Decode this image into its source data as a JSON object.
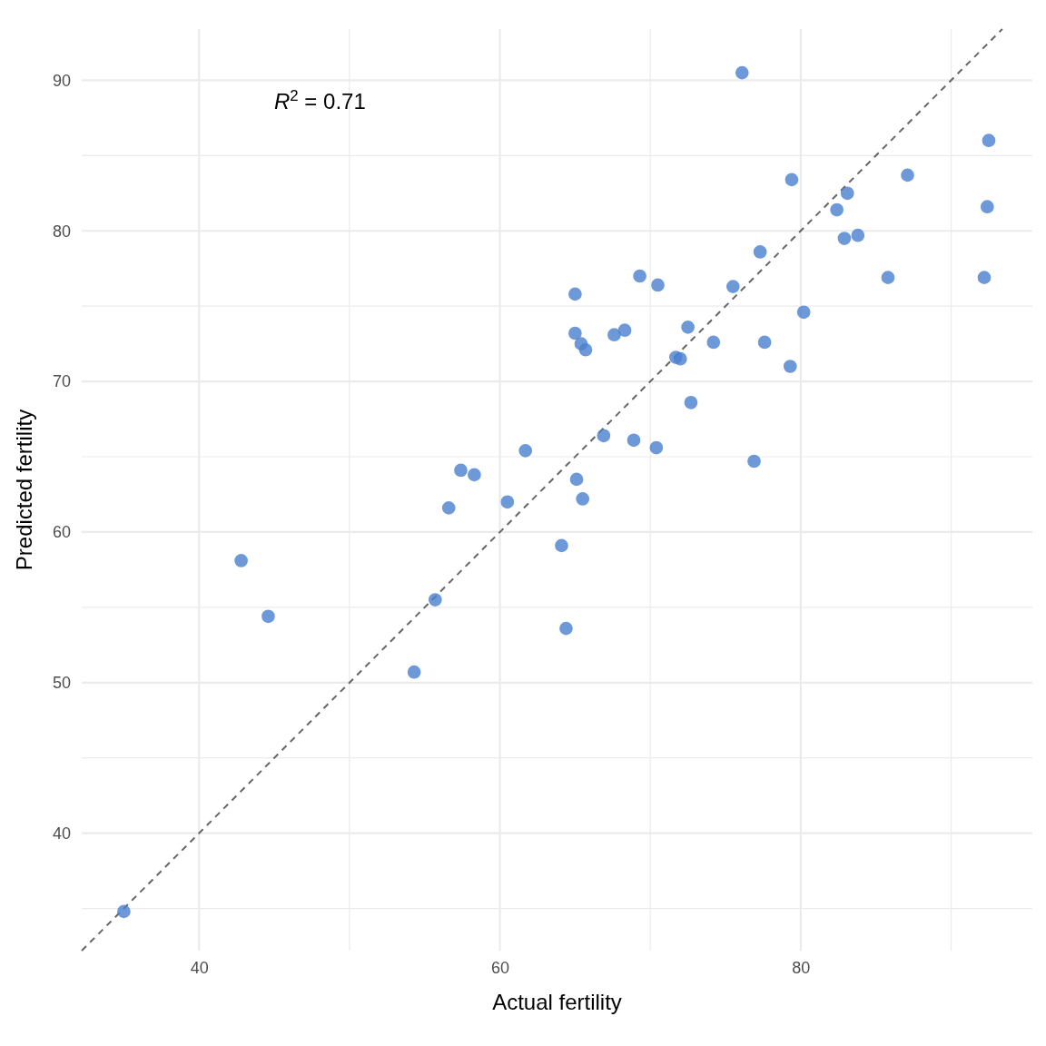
{
  "chart_data": {
    "type": "scatter",
    "xlabel": "Actual fertility",
    "ylabel": "Predicted fertility",
    "annotations": [
      "R$^{2}$ = 0.71"
    ],
    "xlim": [
      32.2,
      95.4
    ],
    "ylim": [
      32.2,
      93.4
    ],
    "xticks": [
      40,
      {
        "value": 50,
        "label": null
      },
      60,
      {
        "value": 70,
        "label": null
      },
      80,
      {
        "value": 90,
        "label": null
      }
    ],
    "yticks": [
      {
        "value": 35,
        "label": null
      },
      40,
      {
        "value": 45,
        "label": null
      },
      50,
      {
        "value": 55,
        "label": null
      },
      60,
      {
        "value": 65,
        "label": null
      },
      70,
      {
        "value": 75,
        "label": null
      },
      80,
      {
        "value": 85,
        "label": null
      },
      90
    ],
    "grid": true,
    "marker": "circle",
    "series": [
      {
        "type": "line",
        "color": "#666666",
        "line_style": "dashed",
        "marker": "none",
        "x": [
          32.2,
          93.4
        ],
        "values": [
          32.2,
          93.4
        ]
      },
      {
        "type": "scatter",
        "color": "#4a80d0",
        "x": [
          35.0,
          42.8,
          44.6,
          54.3,
          55.7,
          56.6,
          57.4,
          58.3,
          60.5,
          61.7,
          64.1,
          64.4,
          65.0,
          65.0,
          65.4,
          65.7,
          65.1,
          65.5,
          66.9,
          67.6,
          68.3,
          68.9,
          69.3,
          70.4,
          70.5,
          71.7,
          72.0,
          72.5,
          72.7,
          74.2,
          75.5,
          76.1,
          76.9,
          77.3,
          77.6,
          79.3,
          79.4,
          80.2,
          82.4,
          82.9,
          83.1,
          83.8,
          85.8,
          87.1,
          92.2,
          92.4,
          92.5
        ],
        "values": [
          34.8,
          58.1,
          54.4,
          50.7,
          55.5,
          61.6,
          64.1,
          63.8,
          62.0,
          65.4,
          59.1,
          53.6,
          75.8,
          73.2,
          72.5,
          72.1,
          63.5,
          62.2,
          66.4,
          73.1,
          73.4,
          66.1,
          77.0,
          65.6,
          76.4,
          71.6,
          71.5,
          73.6,
          68.6,
          72.6,
          76.3,
          90.5,
          64.7,
          78.6,
          72.6,
          71.0,
          83.4,
          74.6,
          81.4,
          79.5,
          82.5,
          79.7,
          76.9,
          83.7,
          76.9,
          81.6,
          86.0
        ]
      }
    ]
  }
}
